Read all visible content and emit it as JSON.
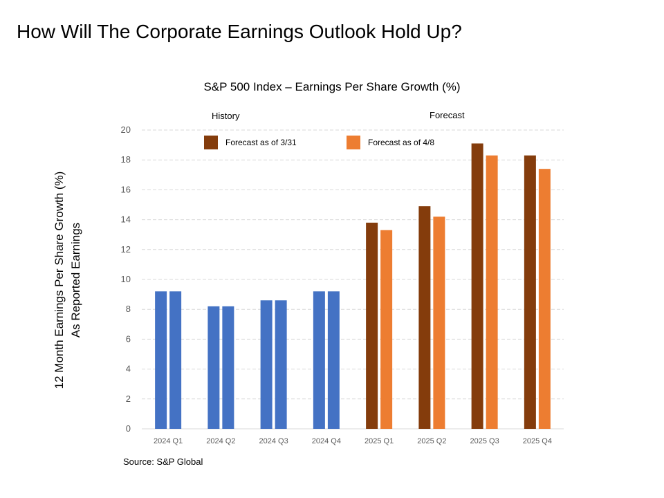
{
  "slide": {
    "title": "How Will The Corporate Earnings Outlook Hold Up?"
  },
  "source": "Source: S&P Global",
  "chart_data": {
    "type": "bar",
    "title": "S&P 500 Index – Earnings Per Share Growth (%)",
    "ylabel_lines": [
      "12 Month Earnings Per Share Growth (%)",
      "As Reported Earnings"
    ],
    "xlabel": "",
    "ylim": [
      0,
      20
    ],
    "yticks": [
      0,
      2,
      4,
      6,
      8,
      10,
      12,
      14,
      16,
      18,
      20
    ],
    "grid": true,
    "sections": [
      {
        "label": "History",
        "over": "2024"
      },
      {
        "label": "Forecast",
        "over": "2025"
      }
    ],
    "categories": [
      "2024 Q1",
      "2024 Q2",
      "2024 Q3",
      "2024 Q4",
      "2025 Q1",
      "2025 Q2",
      "2025 Q3",
      "2025 Q4"
    ],
    "series": [
      {
        "name": "Forecast as of 3/31",
        "values": [
          9.2,
          8.2,
          8.6,
          9.2,
          13.8,
          14.9,
          19.1,
          18.3
        ],
        "colors": [
          "#4472C4",
          "#4472C4",
          "#4472C4",
          "#4472C4",
          "#843C0C",
          "#843C0C",
          "#843C0C",
          "#843C0C"
        ]
      },
      {
        "name": "Forecast as of 4/8",
        "values": [
          9.2,
          8.2,
          8.6,
          9.2,
          13.3,
          14.2,
          18.3,
          17.4
        ],
        "colors": [
          "#4472C4",
          "#4472C4",
          "#4472C4",
          "#4472C4",
          "#ED7D31",
          "#ED7D31",
          "#ED7D31",
          "#ED7D31"
        ]
      }
    ],
    "legend": [
      {
        "label": "Forecast as of 3/31",
        "color": "#843C0C"
      },
      {
        "label": "Forecast as of 4/8",
        "color": "#ED7D31"
      }
    ],
    "grid_color": "#D9D9D9",
    "axis_color": "#D9D9D9"
  }
}
